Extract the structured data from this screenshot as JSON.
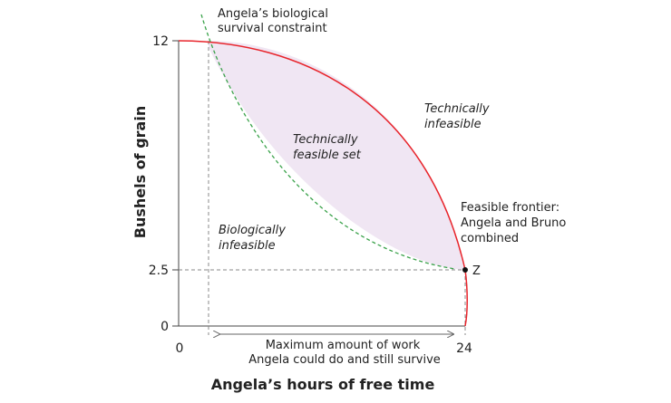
{
  "chart_data": {
    "type": "diagram",
    "xlabel": "Angela’s hours of free time",
    "ylabel": "Bushels of grain",
    "x_ticks": [
      "0",
      "24"
    ],
    "y_ticks": [
      "12",
      "2.5",
      "0"
    ],
    "xlim": [
      0,
      24
    ],
    "ylim": [
      0,
      12
    ],
    "point": {
      "label": "Z",
      "x": 24,
      "y": 2.5
    },
    "curves": [
      {
        "name": "frontier",
        "style": "solid",
        "color": "#e8242b"
      },
      {
        "name": "survival",
        "style": "dashed",
        "color": "#3aa24a"
      }
    ],
    "fill_color": "#f0e6f3",
    "annotations": {
      "survival_line1": "Angela’s biological",
      "survival_line2": "survival constraint",
      "tech_infeasible_line1": "Technically",
      "tech_infeasible_line2": "infeasible",
      "tech_feasible_line1": "Technically",
      "tech_feasible_line2": "feasible set",
      "frontier_line1": "Feasible frontier:",
      "frontier_line2": "Angela and Bruno",
      "frontier_line3": "combined",
      "bio_infeasible_line1": "Biologically",
      "bio_infeasible_line2": "infeasible",
      "max_work_line1": "Maximum amount of work",
      "max_work_line2": "Angela could do and still survive"
    }
  }
}
